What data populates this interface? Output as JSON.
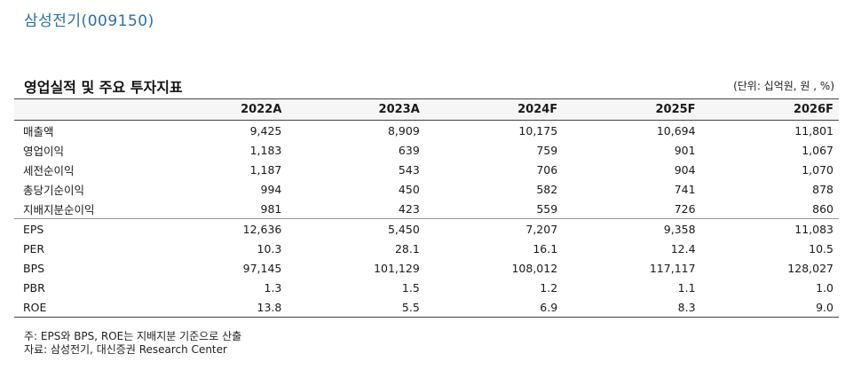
{
  "colors": {
    "company": "#2b6fa8",
    "accent": "#1a1a1a"
  },
  "company_label": "삼성전기(009150)",
  "table_title": "영업실적 및 주요 투자지표",
  "unit_label": "(단위: 십억원, 원 , %)",
  "columns": [
    "2022A",
    "2023A",
    "2024F",
    "2025F",
    "2026F"
  ],
  "rows": [
    {
      "label": "매출액",
      "values": [
        "9,425",
        "8,909",
        "10,175",
        "10,694",
        "11,801"
      ]
    },
    {
      "label": "영업이익",
      "values": [
        "1,183",
        "639",
        "759",
        "901",
        "1,067"
      ]
    },
    {
      "label": "세전순이익",
      "values": [
        "1,187",
        "543",
        "706",
        "904",
        "1,070"
      ]
    },
    {
      "label": "총당기순이익",
      "values": [
        "994",
        "450",
        "582",
        "741",
        "878"
      ]
    },
    {
      "label": "지배지분순이익",
      "values": [
        "981",
        "423",
        "559",
        "726",
        "860"
      ]
    },
    {
      "label": "EPS",
      "values": [
        "12,636",
        "5,450",
        "7,207",
        "9,358",
        "11,083"
      ]
    },
    {
      "label": "PER",
      "values": [
        "10.3",
        "28.1",
        "16.1",
        "12.4",
        "10.5"
      ]
    },
    {
      "label": "BPS",
      "values": [
        "97,145",
        "101,129",
        "108,012",
        "117,117",
        "128,027"
      ]
    },
    {
      "label": "PBR",
      "values": [
        "1.3",
        "1.5",
        "1.2",
        "1.1",
        "1.0"
      ]
    },
    {
      "label": "ROE",
      "values": [
        "13.8",
        "5.5",
        "6.9",
        "8.3",
        "9.0"
      ]
    }
  ],
  "notes": [
    "주: EPS와 BPS, ROE는 지배지분 기준으로 산출",
    "자료: 삼성전기, 대신증권 Research Center"
  ]
}
